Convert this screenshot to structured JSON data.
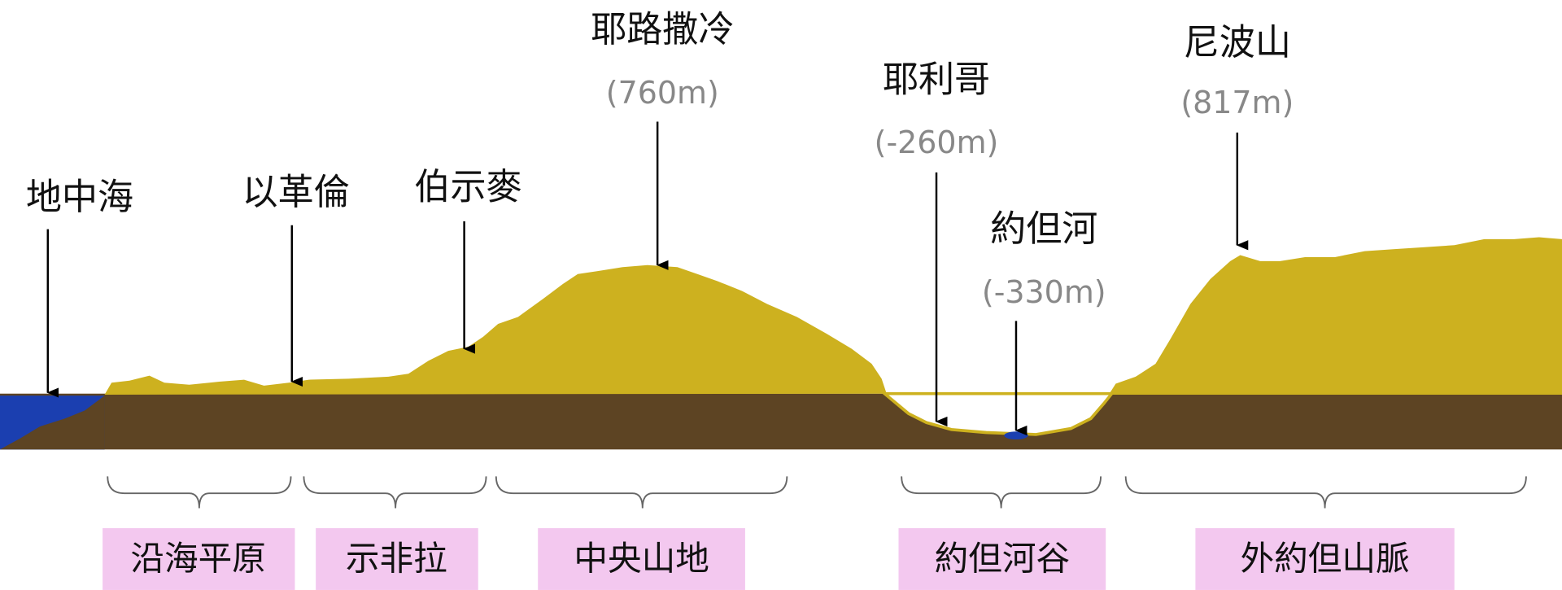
{
  "places": [
    {
      "name": "地中海"
    },
    {
      "name": "以革倫"
    },
    {
      "name": "伯示麥"
    },
    {
      "name": "耶路撒冷",
      "elevation": "(760m)"
    },
    {
      "name": "耶利哥",
      "elevation": "(-260m)"
    },
    {
      "name": "約但河",
      "elevation": "(-330m)"
    },
    {
      "name": "尼波山",
      "elevation": "(817m)"
    }
  ],
  "regions": [
    "沿海平原",
    "示非拉",
    "中央山地",
    "約但河谷",
    "外約但山脈"
  ]
}
